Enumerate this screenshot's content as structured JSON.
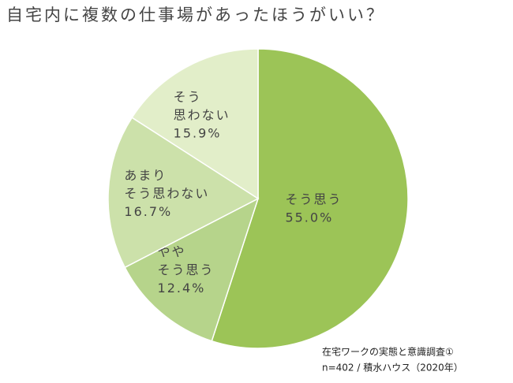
{
  "chart_data": {
    "type": "pie",
    "title": "自宅内に複数の仕事場があったほうがいい？",
    "categories": [
      [
        "そう思う"
      ],
      [
        "やや",
        "そう思う"
      ],
      [
        "あまり",
        "そう思わない"
      ],
      [
        "そう",
        "思わない"
      ]
    ],
    "values": [
      55.0,
      12.4,
      16.7,
      15.9
    ],
    "value_labels": [
      "55.0%",
      "12.4%",
      "16.7%",
      "15.9%"
    ],
    "colors": [
      "#9cc457",
      "#b6d48b",
      "#cce1aa",
      "#e2eec9"
    ],
    "source": [
      "在宅ワークの実態と意識調査①",
      "n=402 / 積水ハウス（2020年）"
    ]
  }
}
